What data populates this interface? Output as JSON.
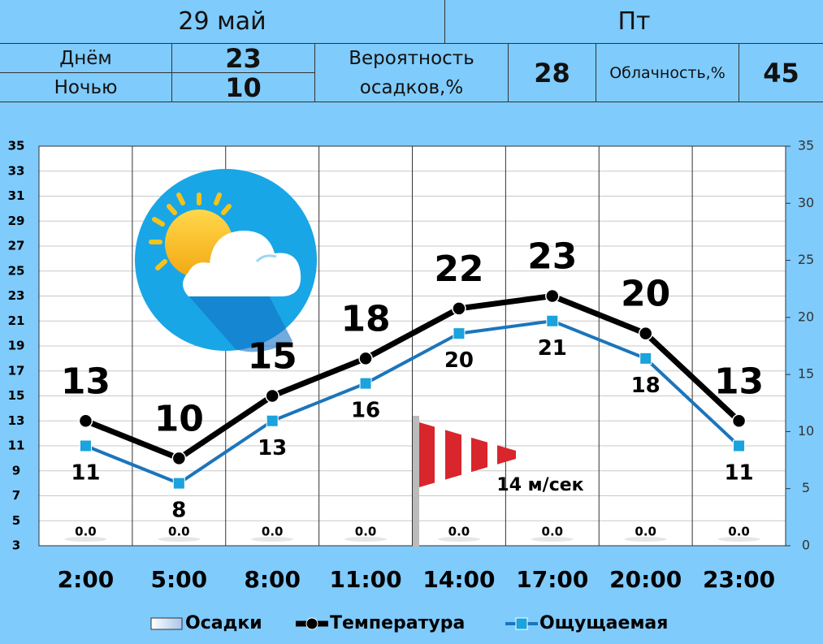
{
  "header": {
    "date": "29 май",
    "weekday": "Пт"
  },
  "summary": {
    "day_label": "Днём",
    "day_value": 23,
    "night_label": "Ночью",
    "night_value": 10,
    "precip_label": "Вероятность осадков,%",
    "precip_value": 28,
    "cloud_label": "Облачность,%",
    "cloud_value": 45
  },
  "chart_data": {
    "type": "line",
    "categories": [
      "2:00",
      "5:00",
      "8:00",
      "11:00",
      "14:00",
      "17:00",
      "20:00",
      "23:00"
    ],
    "series": [
      {
        "name": "Осадки",
        "type": "bar",
        "axis": "y2",
        "color": "#dfe9f5",
        "values": [
          0,
          0,
          0,
          0,
          0,
          0,
          0,
          0
        ],
        "value_labels": [
          "0.0",
          "0.0",
          "0.0",
          "0.0",
          "0.0",
          "0.0",
          "0.0",
          "0.0"
        ]
      },
      {
        "name": "Температура",
        "color": "#000000",
        "values": [
          13,
          10,
          15,
          18,
          22,
          23,
          20,
          13
        ]
      },
      {
        "name": "Ощущаемая",
        "color": "#1b75bb",
        "marker_color": "#1aa3dc",
        "values": [
          11,
          8,
          13,
          16,
          20,
          21,
          18,
          11
        ]
      }
    ],
    "ylim": [
      3,
      35
    ],
    "yticks": [
      3,
      5,
      7,
      9,
      11,
      13,
      15,
      17,
      19,
      21,
      23,
      25,
      27,
      29,
      31,
      33,
      35
    ],
    "y2lim": [
      0,
      35
    ],
    "y2ticks": [
      0,
      5,
      10,
      15,
      20,
      25,
      30,
      35
    ],
    "grid": true,
    "legend": "bottom",
    "annotation": "14 м/сек"
  }
}
